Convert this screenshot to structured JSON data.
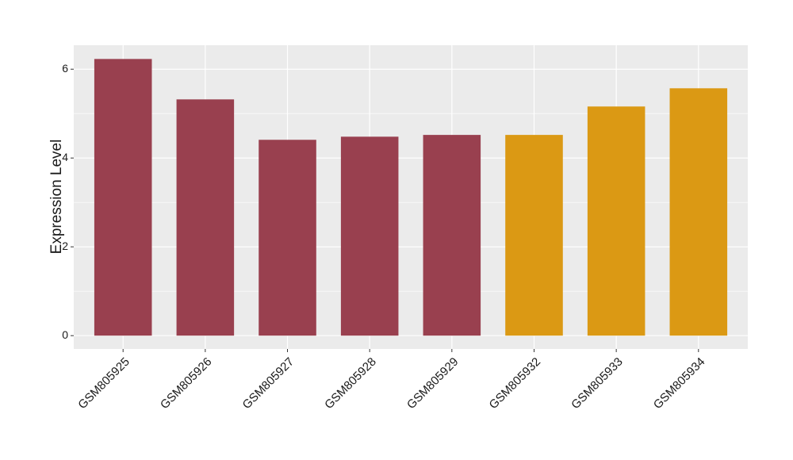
{
  "chart_data": {
    "type": "bar",
    "y_label": "Expression Level",
    "categories": [
      "GSM805925",
      "GSM805926",
      "GSM805927",
      "GSM805928",
      "GSM805929",
      "GSM805932",
      "GSM805933",
      "GSM805934"
    ],
    "values": [
      6.23,
      5.32,
      4.41,
      4.48,
      4.52,
      4.52,
      5.16,
      5.57
    ],
    "colors": [
      "#99404f",
      "#99404f",
      "#99404f",
      "#99404f",
      "#99404f",
      "#db9914",
      "#db9914",
      "#db9914"
    ],
    "ylim": [
      -0.3,
      6.54
    ],
    "yticks": [
      0,
      2,
      4,
      6
    ],
    "grid": true
  }
}
